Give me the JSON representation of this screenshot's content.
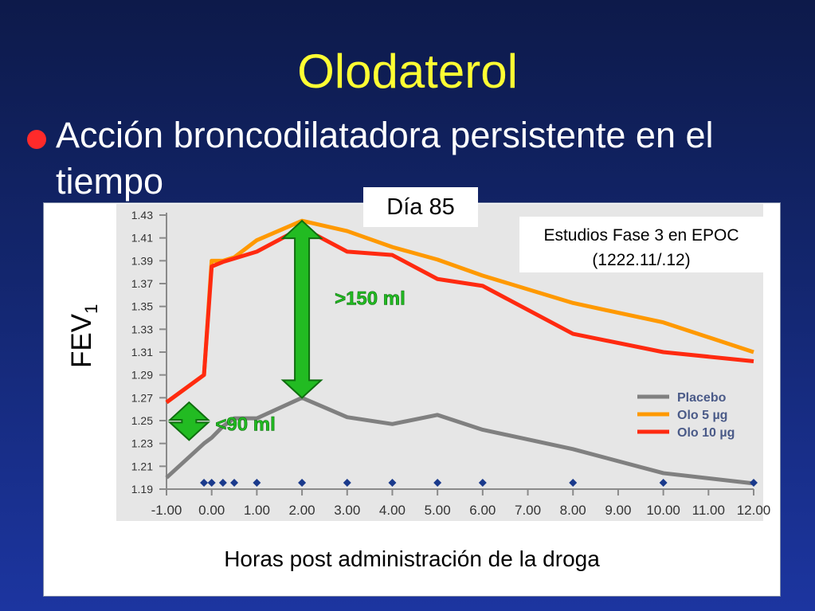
{
  "slide": {
    "title": "Olodaterol",
    "bullet": "Acción broncodilatadora persistente en el tiempo",
    "day_label": "Día 85",
    "study_label_line1": "Estudios Fase 3 en EPOC",
    "study_label_line2": "(1222.11/.12)",
    "ylabel_main": "FEV",
    "ylabel_sub": "1",
    "xlabel": "Horas post administración de la droga"
  },
  "colors": {
    "title": "#ffff33",
    "bullet": "#ff2a2a",
    "plot_bg": "#e6e6e6",
    "placebo": "#808080",
    "olo5": "#ff9900",
    "olo10": "#ff2a10",
    "arrow": "#22bb22",
    "arrow_outline": "#0f6e0f"
  },
  "chart_data": {
    "type": "line",
    "x": [
      -1,
      -0.17,
      0,
      0.25,
      0.5,
      1,
      2,
      3,
      4,
      5,
      6,
      8,
      10,
      12
    ],
    "xlim": [
      -1,
      12
    ],
    "ylim": [
      1.19,
      1.43
    ],
    "xticks": [
      -1,
      0,
      1,
      2,
      3,
      4,
      5,
      6,
      7,
      8,
      9,
      10,
      11,
      12
    ],
    "xtick_labels": [
      "-1.00",
      "0.00",
      "1.00",
      "2.00",
      "3.00",
      "4.00",
      "5.00",
      "6.00",
      "7.00",
      "8.00",
      "9.00",
      "10.00",
      "11.00",
      "12.00"
    ],
    "yticks": [
      1.19,
      1.21,
      1.23,
      1.25,
      1.27,
      1.29,
      1.31,
      1.33,
      1.35,
      1.37,
      1.39,
      1.41,
      1.43
    ],
    "ytick_labels": [
      "1.19",
      "1.21",
      "1.23",
      "1.25",
      "1.27",
      "1.29",
      "1.31",
      "1.33",
      "1.35",
      "1.37",
      "1.39",
      "1.41",
      "1.43"
    ],
    "series": [
      {
        "name": "Placebo",
        "color": "#808080",
        "values": [
          1.2,
          1.23,
          1.235,
          1.245,
          1.252,
          1.252,
          1.27,
          1.253,
          1.247,
          1.255,
          1.242,
          1.225,
          1.204,
          1.195
        ]
      },
      {
        "name": "Olo 5 µg",
        "color": "#ff9900",
        "values": [
          1.266,
          1.29,
          1.39,
          1.39,
          1.393,
          1.408,
          1.425,
          1.416,
          1.402,
          1.391,
          1.377,
          1.353,
          1.336,
          1.31
        ]
      },
      {
        "name": "Olo 10 µg",
        "color": "#ff2a10",
        "values": [
          1.266,
          1.29,
          1.385,
          1.389,
          1.392,
          1.398,
          1.419,
          1.398,
          1.395,
          1.374,
          1.368,
          1.326,
          1.31,
          1.302
        ]
      }
    ],
    "markers_x": [
      -0.17,
      0,
      0.25,
      0.5,
      1,
      2,
      3,
      4,
      5,
      6,
      8,
      10,
      12
    ],
    "annotations": [
      {
        "text": ">150 ml",
        "x": 2,
        "y_from": 1.27,
        "y_to": 1.425
      },
      {
        "text": "<90 ml",
        "x": -0.5,
        "y_from": 1.233,
        "y_to": 1.266
      }
    ],
    "legend_position": "bottom-right"
  }
}
